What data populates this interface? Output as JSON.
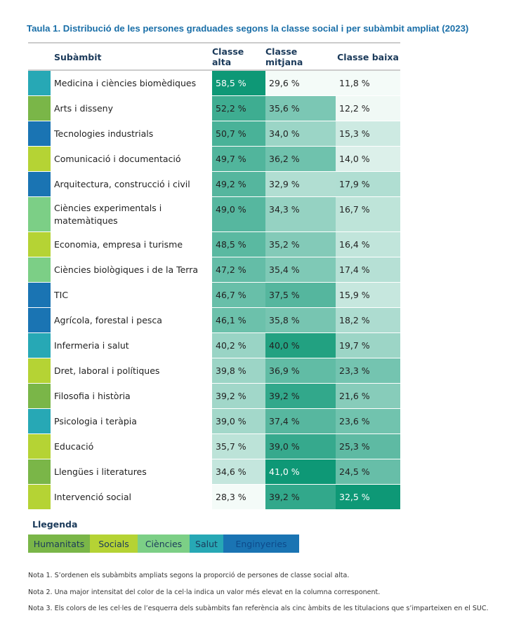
{
  "title": "Taula 1. Distribució de les persones graduades segons la classe social i per subàmbit ampliat (2023)",
  "table": {
    "header": [
      "Subàmbit",
      "Classe alta",
      "Classe mitjana",
      "Classe baixa"
    ],
    "rows": [
      {
        "color": "#27a8b5",
        "cells": [
          "Medicina i ciències biomèdiques",
          "58,5 %",
          "29,6 %",
          "11,8 %"
        ]
      },
      {
        "color": "#7ab648",
        "cells": [
          "Arts i disseny",
          "52,2 %",
          "35,6 %",
          "12,2 %"
        ]
      },
      {
        "color": "#1a74b3",
        "cells": [
          "Tecnologies industrials",
          "50,7 %",
          "34,0 %",
          "15,3 %"
        ]
      },
      {
        "color": "#b5d334",
        "cells": [
          "Comunicació i documentació",
          "49,7 %",
          "36,2 %",
          "14,0 %"
        ]
      },
      {
        "color": "#1a74b3",
        "cells": [
          "Arquitectura, construcció i civil",
          "49,2 %",
          "32,9 %",
          "17,9 %"
        ]
      },
      {
        "color": "#7ccf86",
        "cells": [
          "Ciències experimentals i matemàtiques",
          "49,0 %",
          "34,3 %",
          "16,7 %"
        ]
      },
      {
        "color": "#b5d334",
        "cells": [
          "Economia, empresa i turisme",
          "48,5 %",
          "35,2 %",
          "16,4 %"
        ]
      },
      {
        "color": "#7ccf86",
        "cells": [
          "Ciències biològiques i de la Terra",
          "47,2 %",
          "35,4 %",
          "17,4 %"
        ]
      },
      {
        "color": "#1a74b3",
        "cells": [
          "TIC",
          "46,7 %",
          "37,5 %",
          "15,9 %"
        ]
      },
      {
        "color": "#1a74b3",
        "cells": [
          "Agrícola, forestal i pesca",
          "46,1 %",
          "35,8 %",
          "18,2 %"
        ]
      },
      {
        "color": "#27a8b5",
        "cells": [
          "Infermeria i salut",
          "40,2 %",
          "40,0 %",
          "19,7 %"
        ]
      },
      {
        "color": "#b5d334",
        "cells": [
          "Dret, laboral i polítiques",
          "39,8 %",
          "36,9 %",
          "23,3 %"
        ]
      },
      {
        "color": "#7ab648",
        "cells": [
          "Filosofia i història",
          "39,2 %",
          "39,2 %",
          "21,6 %"
        ]
      },
      {
        "color": "#27a8b5",
        "cells": [
          "Psicologia i teràpia",
          "39,0 %",
          "37,4 %",
          "23,6 %"
        ]
      },
      {
        "color": "#b5d334",
        "cells": [
          "Educació",
          "35,7 %",
          "39,0 %",
          "25,3 %"
        ]
      },
      {
        "color": "#7ab648",
        "cells": [
          "Llengües i literatures",
          "34,6 %",
          "41,0 %",
          "24,5 %"
        ]
      },
      {
        "color": "#b5d334",
        "cells": [
          "Intervenció social",
          "28,3 %",
          "39,2 %",
          "32,5 %"
        ]
      }
    ]
  },
  "legend": {
    "title": "Llegenda",
    "items": [
      {
        "label": "Humanitats",
        "color": "#7ab648"
      },
      {
        "label": "Socials",
        "color": "#b5d334"
      },
      {
        "label": "Ciències",
        "color": "#7ccf86"
      },
      {
        "label": "Salut",
        "color": "#27a8b5"
      },
      {
        "label": "Enginyeries",
        "color": "#1a74b3"
      }
    ]
  },
  "notes": [
    "Nota 1. S’ordenen els subàmbits ampliats segons la proporció de persones de classe social alta.",
    "Nota 2. Una major intensitat del color de la cel·la indica un valor més elevat en la columna corresponent.",
    "Nota 3. Els colors de les cel·les de l’esquerra dels subàmbits fan referència als cinc àmbits de les titulacions que s’imparteixen en el SUC."
  ]
}
